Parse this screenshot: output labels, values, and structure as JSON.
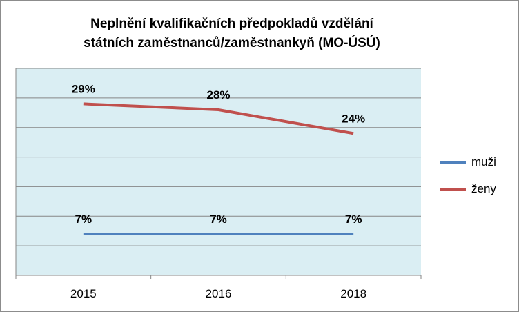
{
  "chart_data": {
    "type": "line",
    "title_lines": [
      "Neplnění kvalifikačních předpokladů vzdělání",
      "státních zaměstnanců/zaměstnankyň (MO-ÚSÚ)"
    ],
    "categories": [
      "2015",
      "2016",
      "2018"
    ],
    "series": [
      {
        "name": "muži",
        "values": [
          7,
          7,
          7
        ],
        "labels": [
          "7%",
          "7%",
          "7%"
        ],
        "color": "#4f81bd"
      },
      {
        "name": "ženy",
        "values": [
          29,
          28,
          24
        ],
        "labels": [
          "29%",
          "28%",
          "24%"
        ],
        "color": "#c0504d"
      }
    ],
    "ylim": [
      0,
      35
    ],
    "grid": true,
    "plot_background": "#daeef3",
    "legend_position": "right"
  }
}
